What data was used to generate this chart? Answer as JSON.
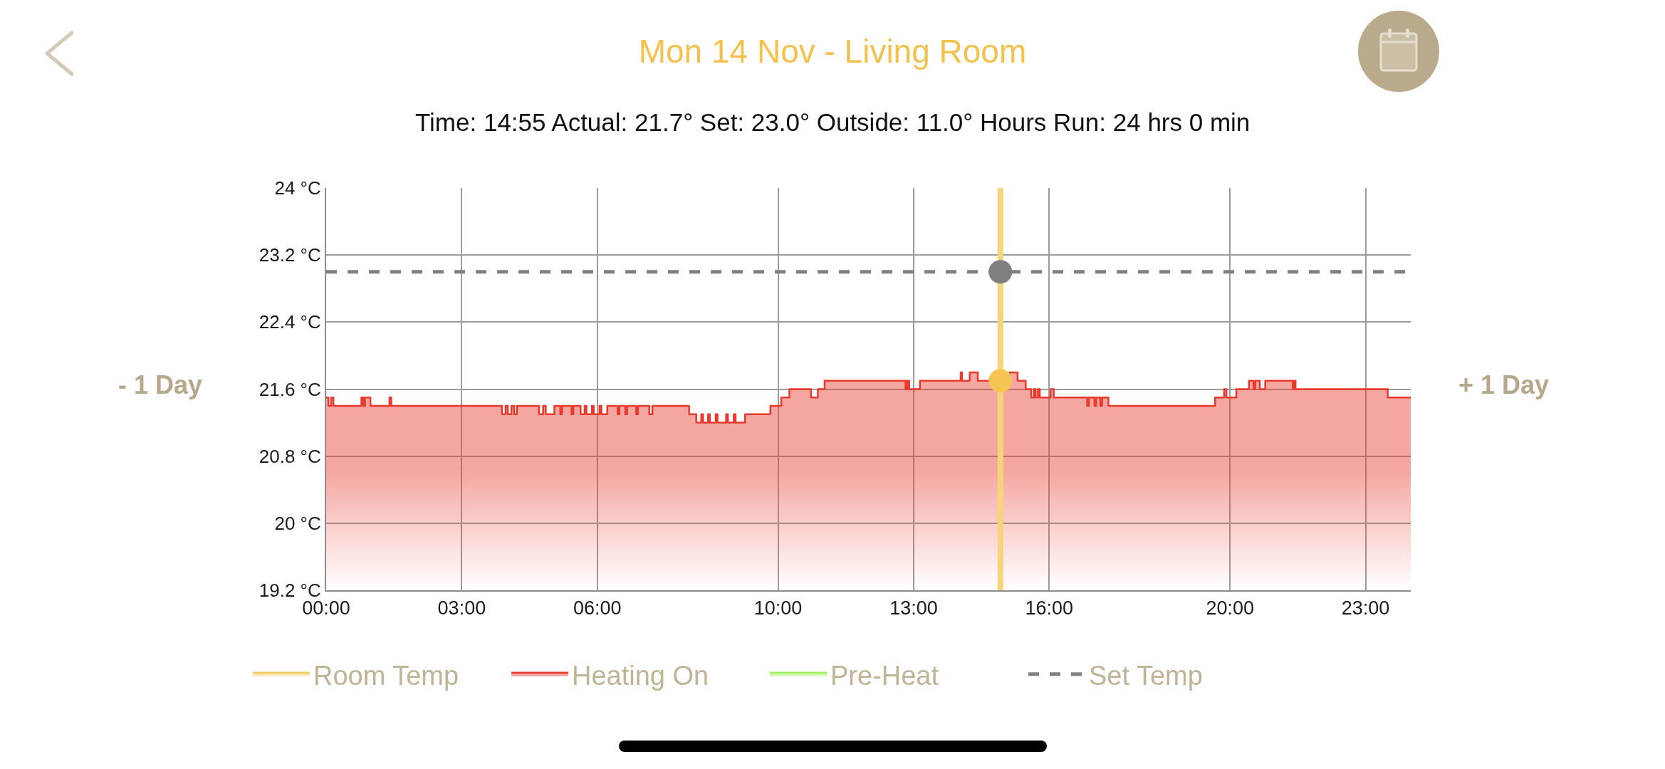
{
  "chart_data": {
    "type": "area",
    "title": "Mon 14 Nov - Living Room",
    "subtitle": "Time: 14:55 Actual: 21.7° Set: 23.0° Outside: 11.0° Hours Run: 24 hrs 0 min",
    "annotations": [
      "- 1 Day",
      "+ 1 Day"
    ],
    "xlim": [
      0,
      24
    ],
    "xticks": [
      {
        "value": 0,
        "label": "00:00"
      },
      {
        "value": 3,
        "label": "03:00"
      },
      {
        "value": 6,
        "label": "06:00"
      },
      {
        "value": 10,
        "label": "10:00"
      },
      {
        "value": 13,
        "label": "13:00"
      },
      {
        "value": 16,
        "label": "16:00"
      },
      {
        "value": 20,
        "label": "20:00"
      },
      {
        "value": 23,
        "label": "23:00"
      }
    ],
    "ylim": [
      19.2,
      24
    ],
    "yticks": [
      {
        "value": 19.2,
        "label": "19.2 °C"
      },
      {
        "value": 20,
        "label": "20 °C"
      },
      {
        "value": 20.8,
        "label": "20.8 °C"
      },
      {
        "value": 21.6,
        "label": "21.6 °C"
      },
      {
        "value": 22.4,
        "label": "22.4 °C"
      },
      {
        "value": 23.2,
        "label": "23.2 °C"
      },
      {
        "value": 24,
        "label": "24 °C"
      }
    ],
    "grid": true,
    "legend": "bottom",
    "ref_lines": [
      {
        "axis": "x",
        "value": 14.92,
        "color": "#f7d47c"
      }
    ],
    "series": [
      {
        "name": "Room Temp",
        "color": "#f6c95e",
        "values": [
          null
        ]
      },
      {
        "name": "Heating On",
        "color": "#e8392c",
        "x": [
          0,
          0.05,
          0.05,
          0.11,
          0.11,
          0.16,
          0.16,
          0.78,
          0.78,
          0.82,
          0.82,
          0.86,
          0.86,
          0.98,
          0.98,
          1.4,
          1.4,
          1.44,
          1.44,
          3.89,
          3.89,
          3.97,
          3.97,
          4.02,
          4.02,
          4.1,
          4.1,
          4.16,
          4.16,
          4.22,
          4.22,
          4.71,
          4.71,
          4.8,
          4.8,
          4.86,
          4.86,
          5.05,
          5.05,
          5.18,
          5.18,
          5.22,
          5.22,
          5.43,
          5.43,
          5.47,
          5.47,
          5.63,
          5.63,
          5.72,
          5.72,
          5.76,
          5.76,
          5.88,
          5.88,
          5.92,
          5.92,
          6.05,
          6.05,
          6.09,
          6.09,
          6.22,
          6.22,
          6.45,
          6.45,
          6.49,
          6.49,
          6.62,
          6.62,
          6.66,
          6.66,
          6.86,
          6.86,
          6.9,
          6.9,
          7.15,
          7.15,
          7.22,
          7.22,
          8.03,
          8.03,
          8.19,
          8.19,
          8.3,
          8.3,
          8.34,
          8.34,
          8.45,
          8.45,
          8.49,
          8.49,
          8.62,
          8.62,
          8.66,
          8.66,
          8.85,
          8.85,
          8.89,
          8.89,
          9.02,
          9.02,
          9.06,
          9.06,
          9.27,
          9.27,
          9.83,
          9.83,
          10.07,
          10.07,
          10.25,
          10.25,
          10.73,
          10.73,
          10.88,
          10.88,
          11.03,
          11.03,
          12.82,
          12.82,
          12.86,
          12.86,
          12.9,
          12.9,
          13.14,
          13.14,
          14.04,
          14.04,
          14.07,
          14.07,
          14.24,
          14.24,
          14.42,
          14.42,
          15.12,
          15.12,
          15.3,
          15.3,
          15.48,
          15.48,
          15.6,
          15.6,
          15.66,
          15.66,
          15.7,
          15.7,
          15.75,
          15.75,
          15.79,
          15.79,
          16.03,
          16.03,
          16.1,
          16.1,
          16.84,
          16.84,
          16.88,
          16.88,
          17,
          17,
          17.04,
          17.04,
          17.13,
          17.13,
          17.17,
          17.17,
          17.31,
          17.31,
          19.67,
          19.67,
          19.87,
          19.87,
          19.92,
          19.92,
          20.14,
          20.14,
          20.42,
          20.42,
          20.52,
          20.52,
          20.56,
          20.56,
          20.66,
          20.66,
          20.78,
          20.78,
          21.39,
          21.39,
          21.42,
          21.42,
          21.45,
          21.45,
          23.49,
          23.49,
          24
        ],
        "values": [
          21.5,
          21.5,
          21.4,
          21.4,
          21.5,
          21.5,
          21.4,
          21.4,
          21.5,
          21.5,
          21.4,
          21.4,
          21.5,
          21.5,
          21.4,
          21.4,
          21.5,
          21.5,
          21.4,
          21.4,
          21.3,
          21.3,
          21.4,
          21.4,
          21.3,
          21.3,
          21.4,
          21.4,
          21.3,
          21.3,
          21.4,
          21.4,
          21.3,
          21.3,
          21.4,
          21.4,
          21.3,
          21.3,
          21.4,
          21.4,
          21.3,
          21.3,
          21.4,
          21.4,
          21.3,
          21.3,
          21.4,
          21.4,
          21.3,
          21.3,
          21.4,
          21.4,
          21.3,
          21.3,
          21.4,
          21.4,
          21.3,
          21.3,
          21.4,
          21.4,
          21.3,
          21.3,
          21.4,
          21.4,
          21.3,
          21.3,
          21.4,
          21.4,
          21.3,
          21.3,
          21.4,
          21.4,
          21.3,
          21.3,
          21.4,
          21.4,
          21.3,
          21.3,
          21.4,
          21.4,
          21.3,
          21.3,
          21.2,
          21.2,
          21.3,
          21.3,
          21.2,
          21.2,
          21.3,
          21.3,
          21.2,
          21.2,
          21.3,
          21.3,
          21.2,
          21.2,
          21.3,
          21.3,
          21.2,
          21.2,
          21.3,
          21.3,
          21.2,
          21.2,
          21.3,
          21.3,
          21.4,
          21.4,
          21.5,
          21.5,
          21.6,
          21.6,
          21.5,
          21.5,
          21.6,
          21.6,
          21.7,
          21.7,
          21.6,
          21.6,
          21.7,
          21.7,
          21.6,
          21.6,
          21.7,
          21.7,
          21.8,
          21.8,
          21.7,
          21.7,
          21.8,
          21.8,
          21.7,
          21.7,
          21.8,
          21.8,
          21.7,
          21.7,
          21.6,
          21.6,
          21.5,
          21.5,
          21.6,
          21.6,
          21.5,
          21.5,
          21.6,
          21.6,
          21.5,
          21.5,
          21.6,
          21.6,
          21.5,
          21.5,
          21.4,
          21.4,
          21.5,
          21.5,
          21.4,
          21.4,
          21.5,
          21.5,
          21.4,
          21.4,
          21.5,
          21.5,
          21.4,
          21.4,
          21.5,
          21.5,
          21.6,
          21.6,
          21.5,
          21.5,
          21.6,
          21.6,
          21.7,
          21.7,
          21.6,
          21.6,
          21.7,
          21.7,
          21.6,
          21.6,
          21.7,
          21.7,
          21.6,
          21.6,
          21.7,
          21.7,
          21.6,
          21.6,
          21.5,
          21.5
        ]
      },
      {
        "name": "Pre-Heat",
        "color": "#9ff05c",
        "values": [
          null
        ]
      },
      {
        "name": "Set Temp",
        "type": "line",
        "line_style": "dashed",
        "color": "#808080",
        "x": [
          0,
          24
        ],
        "values": [
          23.0,
          23.0
        ]
      },
      {
        "type": "scatter",
        "marker": "circle",
        "color": "#7f7f7f",
        "x": [
          14.92
        ],
        "values": [
          23.0
        ]
      },
      {
        "type": "scatter",
        "marker": "circle",
        "color": "#f5c453",
        "x": [
          14.92
        ],
        "values": [
          21.7
        ]
      }
    ]
  }
}
